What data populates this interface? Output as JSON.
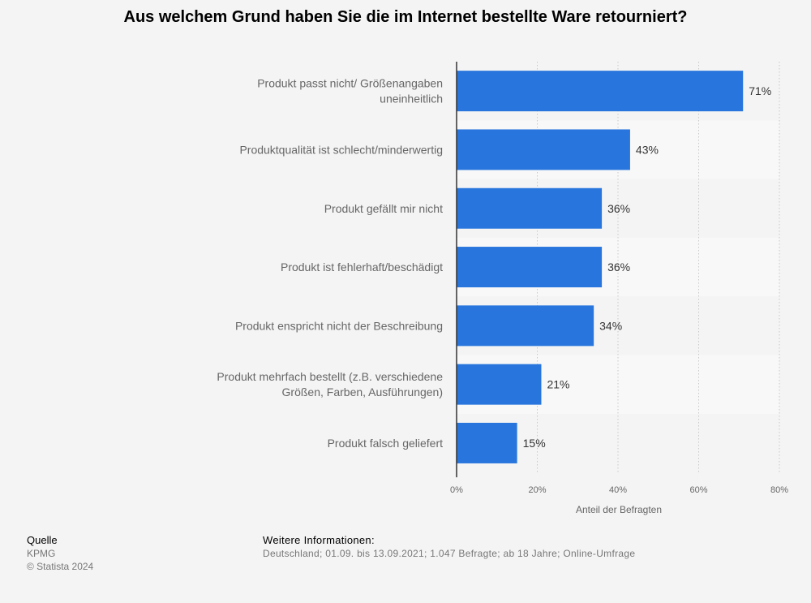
{
  "chart_data": {
    "type": "bar",
    "orientation": "horizontal",
    "title": "Aus welchem Grund haben Sie die im Internet bestellte Ware retourniert?",
    "categories": [
      [
        "Produkt passt nicht/ Größenangaben",
        "uneinheitlich"
      ],
      [
        "Produktqualität ist schlecht/minderwertig"
      ],
      [
        "Produkt gefällt mir nicht"
      ],
      [
        "Produkt ist fehlerhaft/beschädigt"
      ],
      [
        "Produkt enspricht nicht der Beschreibung"
      ],
      [
        "Produkt mehrfach bestellt (z.B. verschiedene",
        "Größen, Farben, Ausführungen)"
      ],
      [
        "Produkt falsch geliefert"
      ]
    ],
    "values": [
      71,
      43,
      36,
      36,
      34,
      21,
      15
    ],
    "value_labels": [
      "71%",
      "43%",
      "36%",
      "36%",
      "34%",
      "21%",
      "15%"
    ],
    "xlabel": "Anteil der Befragten",
    "xlim": [
      0,
      80
    ],
    "ticks": [
      0,
      20,
      40,
      60,
      80
    ],
    "tick_labels": [
      "0%",
      "20%",
      "40%",
      "60%",
      "80%"
    ],
    "grid": true,
    "colors": {
      "bar": "#2876dd",
      "band": "#f8f8f8"
    }
  },
  "footer": {
    "source_heading": "Quelle",
    "source": "KPMG",
    "copyright": "© Statista 2024",
    "info_heading": "Weitere Informationen:",
    "info": "Deutschland; 01.09. bis 13.09.2021; 1.047 Befragte; ab 18 Jahre; Online-Umfrage"
  }
}
